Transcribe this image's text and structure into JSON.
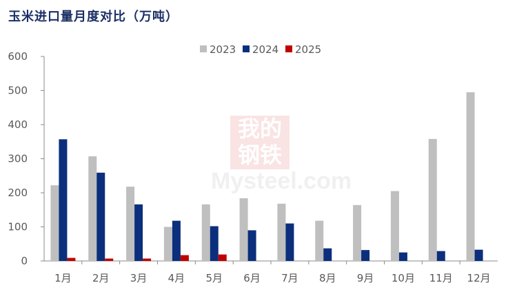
{
  "title": "玉米进口量月度对比（万吨）",
  "watermark": {
    "line1": "我的",
    "line2": "钢铁",
    "line3": "Mysteel.com"
  },
  "chart_data": {
    "type": "bar",
    "categories": [
      "1月",
      "2月",
      "3月",
      "4月",
      "5月",
      "6月",
      "7月",
      "8月",
      "9月",
      "10月",
      "11月",
      "12月"
    ],
    "series": [
      {
        "name": "2023",
        "color": "#bfbfbf",
        "values": [
          222,
          307,
          218,
          100,
          166,
          184,
          168,
          118,
          164,
          205,
          358,
          495
        ]
      },
      {
        "name": "2024",
        "color": "#0b2f7c",
        "values": [
          357,
          259,
          166,
          118,
          102,
          90,
          110,
          37,
          32,
          25,
          29,
          33
        ]
      },
      {
        "name": "2025",
        "color": "#c00000",
        "values": [
          9,
          7,
          7,
          17,
          19,
          null,
          null,
          null,
          null,
          null,
          null,
          null
        ]
      }
    ],
    "y_ticks": [
      "0",
      "100",
      "200",
      "300",
      "400",
      "500",
      "600"
    ],
    "ylim": [
      0,
      600
    ],
    "legend_position": "top-center",
    "grid": false
  }
}
